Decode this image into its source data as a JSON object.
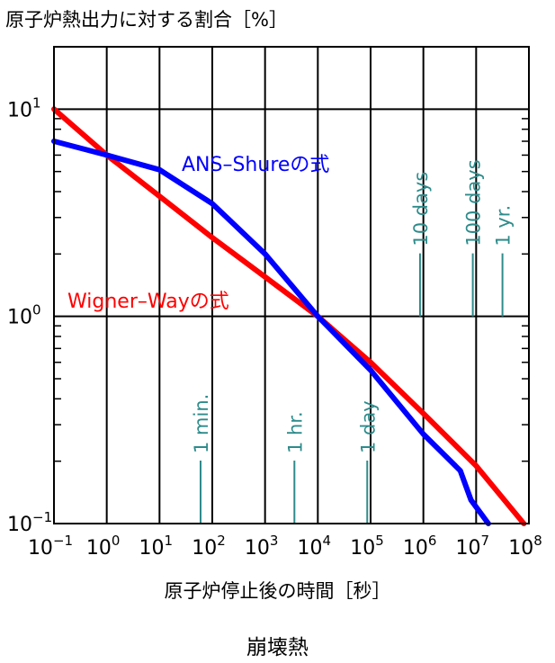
{
  "chart_data": {
    "type": "line",
    "title": "",
    "xlabel": "原子炉停止後の時間［秒］",
    "ylabel": "原子炉熱出力に対する割合［%］",
    "caption": "崩壊熱",
    "xscale": "log",
    "yscale": "log",
    "xlim": [
      0.1,
      100000000
    ],
    "ylim": [
      0.1,
      20
    ],
    "grid": true,
    "x_tick_labels": [
      {
        "base": "10",
        "exp": "−1"
      },
      {
        "base": "10",
        "exp": "0"
      },
      {
        "base": "10",
        "exp": "1"
      },
      {
        "base": "10",
        "exp": "2"
      },
      {
        "base": "10",
        "exp": "3"
      },
      {
        "base": "10",
        "exp": "4"
      },
      {
        "base": "10",
        "exp": "5"
      },
      {
        "base": "10",
        "exp": "6"
      },
      {
        "base": "10",
        "exp": "7"
      },
      {
        "base": "10",
        "exp": "8"
      }
    ],
    "y_tick_labels": [
      {
        "base": "10",
        "exp": "−1"
      },
      {
        "base": "10",
        "exp": "0"
      },
      {
        "base": "10",
        "exp": "1"
      }
    ],
    "series": [
      {
        "name": "Wigner–Wayの式",
        "color": "#ff0000",
        "points": [
          [
            0.1,
            10.0
          ],
          [
            1,
            6.0
          ],
          [
            10,
            3.8
          ],
          [
            100,
            2.4
          ],
          [
            1000,
            1.55
          ],
          [
            10000,
            1.0
          ],
          [
            100000,
            0.6
          ],
          [
            1000000,
            0.34
          ],
          [
            10000000,
            0.19
          ],
          [
            80000000,
            0.1
          ]
        ]
      },
      {
        "name": "ANS–Shureの式",
        "color": "#0000ff",
        "points": [
          [
            0.1,
            7.0
          ],
          [
            1,
            6.0
          ],
          [
            10,
            5.1
          ],
          [
            100,
            3.5
          ],
          [
            1000,
            2.0
          ],
          [
            10000,
            1.0
          ],
          [
            100000,
            0.55
          ],
          [
            1000000,
            0.27
          ],
          [
            5000000,
            0.18
          ],
          [
            8000000,
            0.13
          ],
          [
            17000000,
            0.1
          ]
        ]
      }
    ],
    "markers": [
      {
        "label": "1 min.",
        "x": 60
      },
      {
        "label": "1 hr.",
        "x": 3600
      },
      {
        "label": "1 day",
        "x": 86400
      },
      {
        "label": "10 days",
        "x": 864000
      },
      {
        "label": "100 days",
        "x": 8640000
      },
      {
        "label": "1 yr.",
        "x": 31536000
      }
    ],
    "marker_color": "#2e8b8b"
  }
}
